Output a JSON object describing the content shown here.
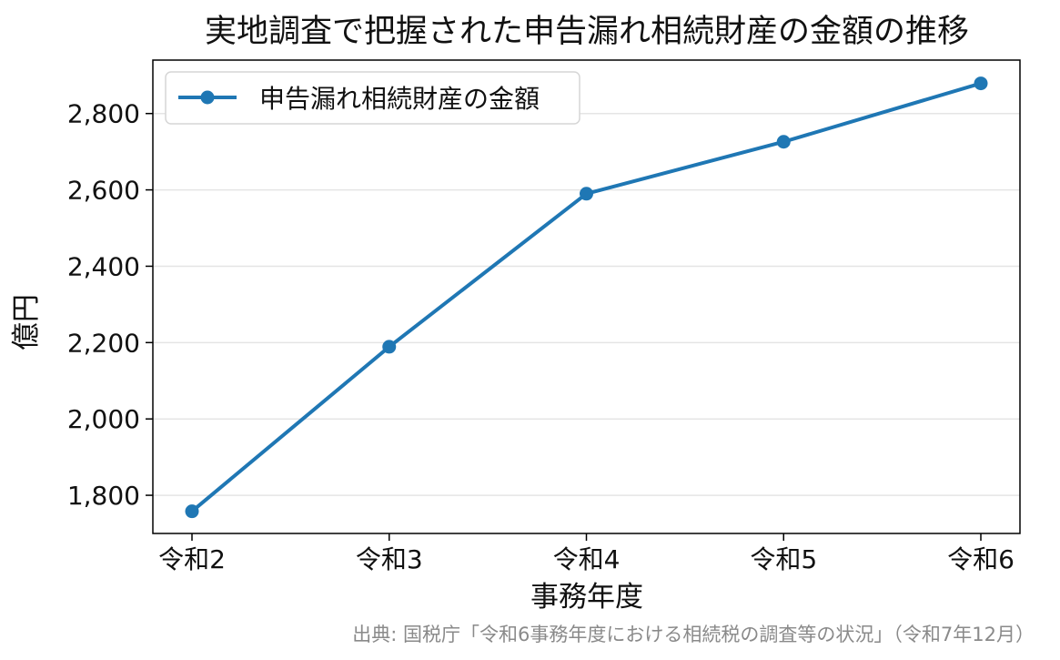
{
  "chart_data": {
    "type": "line",
    "title": "実地調査で把握された申告漏れ相続財産の金額の推移",
    "xlabel": "事務年度",
    "ylabel": "億円",
    "categories": [
      "令和2",
      "令和3",
      "令和4",
      "令和5",
      "令和6"
    ],
    "series": [
      {
        "name": "申告漏れ相続財産の金額",
        "values": [
          1758,
          2189,
          2590,
          2726,
          2879
        ],
        "color": "#1f77b4",
        "marker": "circle"
      }
    ],
    "ylim": [
      1700,
      2940
    ],
    "yticks": [
      1800,
      2000,
      2200,
      2400,
      2600,
      2800
    ],
    "ytick_labels": [
      "1,800",
      "2,000",
      "2,200",
      "2,400",
      "2,600",
      "2,800"
    ],
    "grid": "horizontal",
    "legend_position": "top-left"
  },
  "source": "出典: 国税庁「令和6事務年度における相続税の調査等の状況」（令和7年12月）",
  "colors": {
    "series": "#1f77b4",
    "grid": "#e5e5e5",
    "axis": "#000000",
    "source": "#8a8a8a"
  }
}
